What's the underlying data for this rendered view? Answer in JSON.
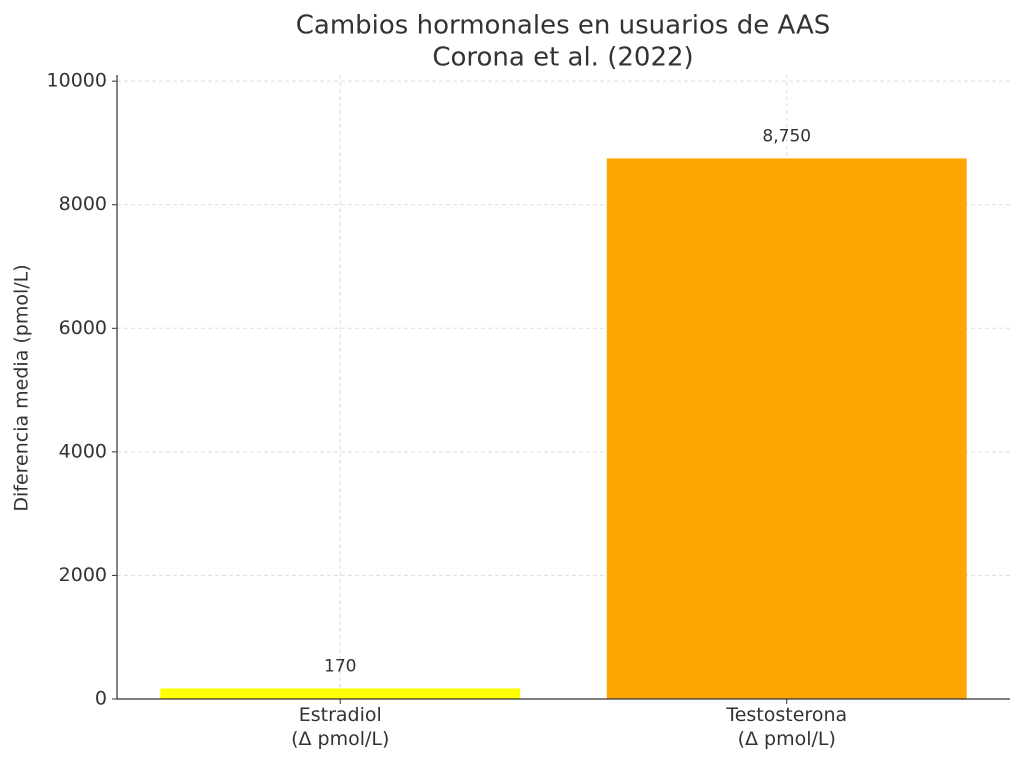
{
  "chart_data": {
    "type": "bar",
    "title": "Cambios hormonales en usuarios de AAS",
    "subtitle": "Corona et al. (2022)",
    "y_label": "Diferencia media (pmol/L)",
    "categories": [
      "Estradiol\n(Δ pmol/L)",
      "Testosterona\n(Δ pmol/L)"
    ],
    "values": [
      170,
      8750
    ],
    "value_labels": [
      "170",
      "8,750"
    ],
    "colors": [
      "#ffff00",
      "#ffa500"
    ],
    "ylim": [
      0,
      10100
    ],
    "yticks": [
      0,
      2000,
      4000,
      6000,
      8000,
      10000
    ],
    "grid": true
  }
}
